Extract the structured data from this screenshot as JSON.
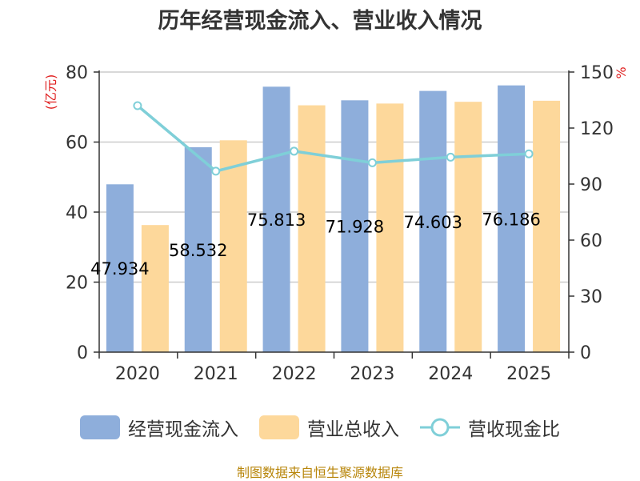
{
  "chart_data": {
    "type": "bar",
    "title": "历年经营现金流入、营业收入情况",
    "categories": [
      "2020",
      "2021",
      "2022",
      "2023",
      "2024",
      "2025"
    ],
    "y_left": {
      "label": "(亿元)",
      "ylim": [
        0,
        80
      ],
      "ticks": [
        "0",
        "20",
        "40",
        "60",
        "80"
      ]
    },
    "y_right": {
      "label": "%",
      "ylim": [
        0,
        150
      ],
      "ticks": [
        "0",
        "30",
        "60",
        "90",
        "120",
        "150"
      ]
    },
    "series": [
      {
        "name": "经营现金流入",
        "type": "bar",
        "axis": "left",
        "color": "#8eaedb",
        "values": [
          47.934,
          58.532,
          75.813,
          71.928,
          74.603,
          76.186
        ],
        "labels": [
          "47.934",
          "58.532",
          "75.813",
          "71.928",
          "74.603",
          "76.186"
        ]
      },
      {
        "name": "营业总收入",
        "type": "bar",
        "axis": "left",
        "color": "#fdd89b",
        "values": [
          36.3,
          60.5,
          70.5,
          71.0,
          71.5,
          71.8
        ]
      },
      {
        "name": "营收现金比",
        "type": "line",
        "axis": "right",
        "color": "#7fcfd8",
        "values": [
          132.0,
          96.9,
          107.6,
          101.4,
          104.4,
          106.2
        ]
      }
    ],
    "grid": true,
    "legend_position": "bottom"
  },
  "footer": "制图数据来自恒生聚源数据库"
}
